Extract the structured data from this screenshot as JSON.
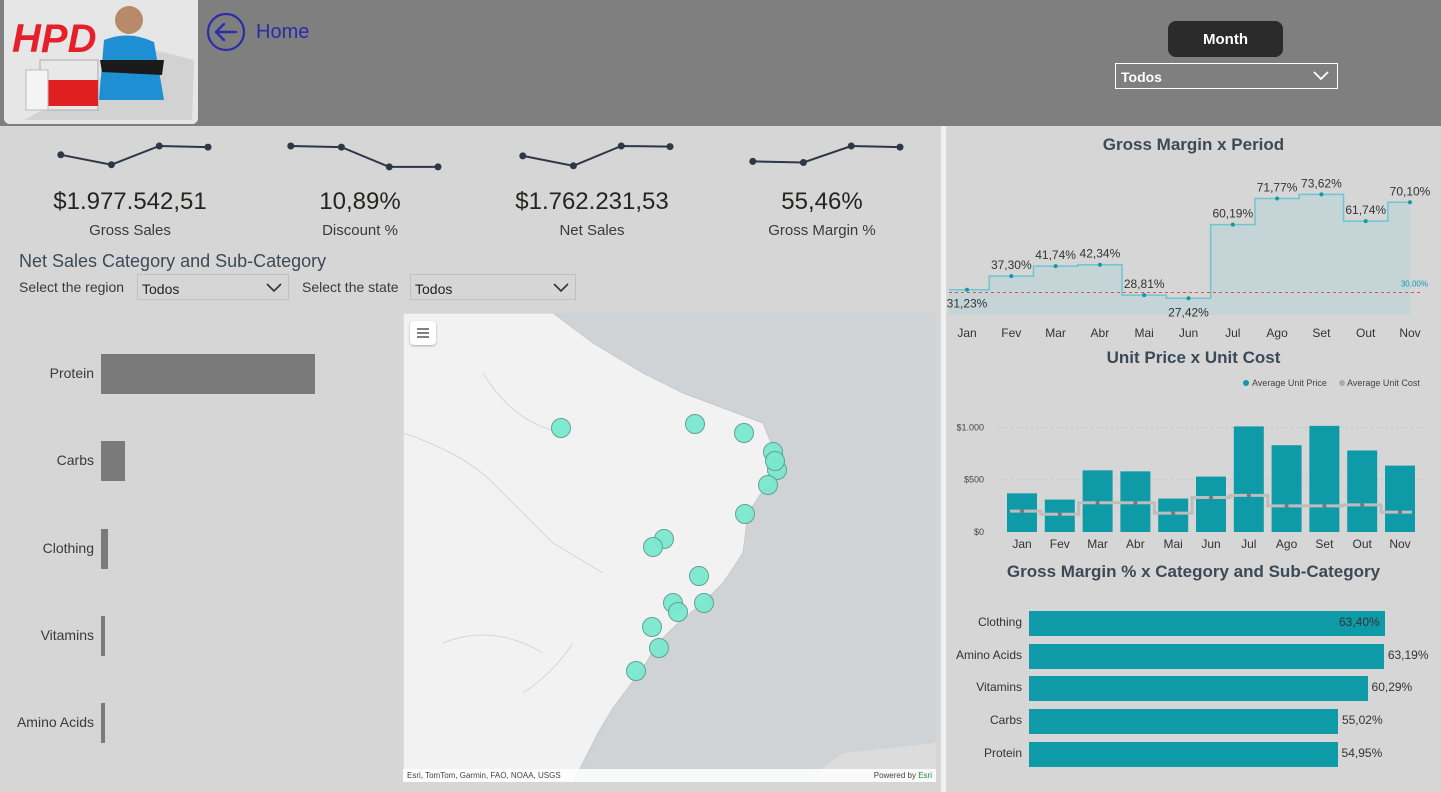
{
  "header": {
    "logo_text": "HPD",
    "home_label": "Home",
    "month_button": "Month",
    "month_select": "Todos"
  },
  "kpis": [
    {
      "value": "$1.977.542,51",
      "label": "Gross Sales",
      "trend": [
        0.6,
        0.15,
        1.0,
        0.95
      ]
    },
    {
      "value": "10,89%",
      "label": "Discount %",
      "trend": [
        1.0,
        0.95,
        0.05,
        0.05
      ]
    },
    {
      "value": "$1.762.231,53",
      "label": "Net Sales",
      "trend": [
        0.55,
        0.1,
        1.0,
        0.97
      ]
    },
    {
      "value": "55,46%",
      "label": "Gross Margin %",
      "trend": [
        0.3,
        0.25,
        1.0,
        0.95
      ]
    }
  ],
  "net_sales": {
    "title": "Net Sales Category and Sub-Category",
    "region_label": "Select the region",
    "region_value": "Todos",
    "state_label": "Select the state",
    "state_value": "Todos"
  },
  "map": {
    "attribution": "Esri, TomTom, Garmin, FAO, NOAA, USGS",
    "powered_by": "Powered by",
    "powered_brand": "Esri"
  },
  "chart_data": [
    {
      "type": "bar",
      "id": "net_sales_category",
      "orientation": "horizontal",
      "categories": [
        "Protein",
        "Carbs",
        "Clothing",
        "Vitamins",
        "Amino Acids"
      ],
      "values": [
        100,
        11,
        3.5,
        2,
        2
      ]
    },
    {
      "type": "line",
      "id": "gross_margin_period",
      "title": "Gross Margin x Period",
      "categories": [
        "Jan",
        "Fev",
        "Mar",
        "Abr",
        "Mai",
        "Jun",
        "Jul",
        "Ago",
        "Set",
        "Out",
        "Nov"
      ],
      "values": [
        31.23,
        37.3,
        41.74,
        42.34,
        28.81,
        27.42,
        60.19,
        71.77,
        73.62,
        61.74,
        70.1
      ],
      "labels": [
        "31,23%",
        "37,30%",
        "41,74%",
        "42,34%",
        "28,81%",
        "27,42%",
        "60,19%",
        "71,77%",
        "73,62%",
        "61,74%",
        "70,10%"
      ],
      "reference_line": 30,
      "reference_label": "30,00%",
      "ylim": [
        20,
        80
      ]
    },
    {
      "type": "bar",
      "id": "unit_price_cost",
      "title": "Unit Price x Unit Cost",
      "categories": [
        "Jan",
        "Fev",
        "Mar",
        "Abr",
        "Mai",
        "Jun",
        "Jul",
        "Ago",
        "Set",
        "Out",
        "Nov"
      ],
      "series": [
        {
          "name": "Average Unit Price",
          "values": [
            370,
            310,
            590,
            580,
            320,
            530,
            1010,
            830,
            1015,
            780,
            635
          ]
        },
        {
          "name": "Average Unit Cost",
          "values": [
            200,
            170,
            280,
            280,
            180,
            330,
            350,
            250,
            250,
            260,
            190
          ]
        }
      ],
      "yticks": [
        "$1.000",
        "$500",
        "$0"
      ],
      "ylim": [
        0,
        1100
      ]
    },
    {
      "type": "bar",
      "id": "gross_margin_category",
      "title": "Gross Margin % x Category and Sub-Category",
      "orientation": "horizontal",
      "categories": [
        "Clothing",
        "Amino Acids",
        "Vitamins",
        "Carbs",
        "Protein"
      ],
      "values": [
        63.4,
        63.19,
        60.29,
        55.02,
        54.95
      ],
      "labels": [
        "63,40%",
        "63,19%",
        "60,29%",
        "55,02%",
        "54,95%"
      ]
    }
  ],
  "colors": {
    "accent": "#0e9aa7",
    "dot": "#7ce8d0",
    "bar_gray": "#7a7a7a",
    "header": "#7f7f7f"
  }
}
